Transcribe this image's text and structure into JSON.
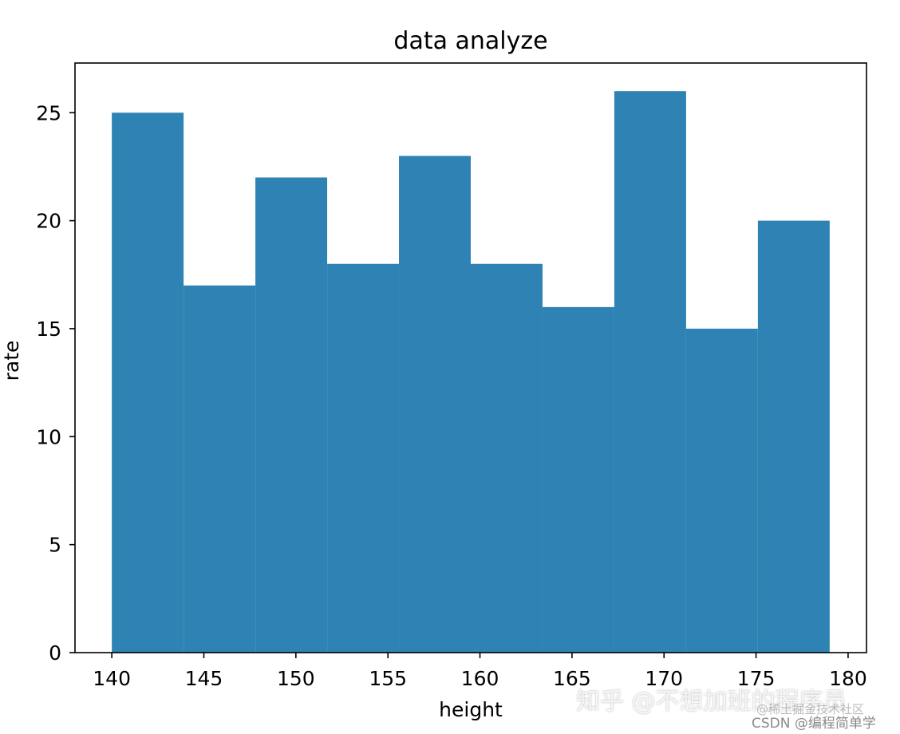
{
  "chart_data": {
    "type": "bar",
    "title": "data analyze",
    "xlabel": "height",
    "ylabel": "rate",
    "bin_edges": [
      140,
      143.9,
      147.8,
      151.7,
      155.6,
      159.5,
      163.4,
      167.3,
      171.2,
      175.1,
      179
    ],
    "values": [
      25,
      17,
      22,
      18,
      23,
      18,
      16,
      26,
      15,
      20
    ],
    "xlim": [
      138,
      181
    ],
    "ylim": [
      0,
      27.3
    ],
    "xticks": [
      140,
      145,
      150,
      155,
      160,
      165,
      170,
      175,
      180
    ],
    "yticks": [
      0,
      5,
      10,
      15,
      20,
      25
    ],
    "color": "#2e83b4",
    "grid": false,
    "legend": "none"
  },
  "watermark": {
    "main": "知乎 @不想加班的程序员",
    "sub": "@稀土掘金技术社区",
    "csdn": "CSDN @编程简单学"
  }
}
